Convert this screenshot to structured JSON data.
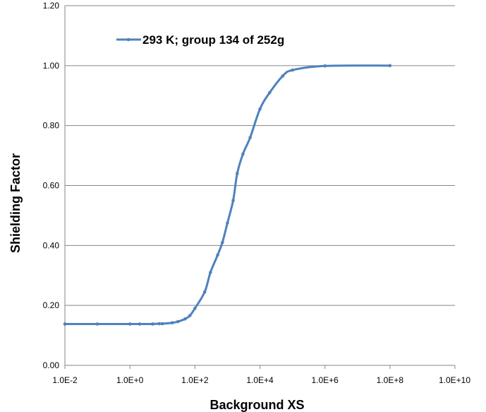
{
  "chart_data": {
    "type": "line",
    "title": "",
    "xlabel": "Background XS",
    "ylabel": "Shielding Factor",
    "x_scale": "log",
    "xlim": [
      "1.0E-2",
      "1.0E+10"
    ],
    "ylim": [
      0,
      1.2
    ],
    "x_tick_labels": [
      "1.0E-2",
      "1.0E+0",
      "1.0E+2",
      "1.0E+4",
      "1.0E+6",
      "1.0E+8",
      "1.0E+10"
    ],
    "y_tick_labels": [
      "0.00",
      "0.20",
      "0.40",
      "0.60",
      "0.80",
      "1.00",
      "1.20"
    ],
    "grid": "horizontal",
    "legend_position": "top-left",
    "series": [
      {
        "name": "293 K; group 134 of 252g",
        "color": "#4f81bd",
        "x": [
          0.01,
          0.1,
          1,
          2,
          5,
          8,
          10,
          20,
          30,
          50,
          70,
          100,
          200,
          300,
          500,
          700,
          1000,
          1500,
          2000,
          3000,
          5000,
          10000,
          20000,
          50000,
          100000,
          1000000,
          100000000
        ],
        "y": [
          0.138,
          0.138,
          0.138,
          0.138,
          0.138,
          0.139,
          0.139,
          0.142,
          0.146,
          0.155,
          0.166,
          0.19,
          0.245,
          0.31,
          0.368,
          0.41,
          0.475,
          0.55,
          0.64,
          0.705,
          0.76,
          0.855,
          0.91,
          0.965,
          0.985,
          0.999,
          1.0
        ]
      }
    ]
  }
}
